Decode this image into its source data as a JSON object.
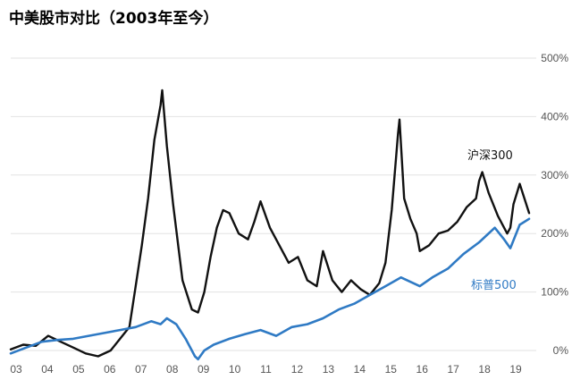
{
  "chart_data": {
    "type": "line",
    "title": "中美股市对比（2003年至今）",
    "xlabel": "",
    "ylabel": "",
    "x_ticks": [
      "03",
      "04",
      "05",
      "06",
      "07",
      "08",
      "09",
      "10",
      "11",
      "12",
      "13",
      "14",
      "15",
      "16",
      "17",
      "18",
      "19"
    ],
    "y_ticks": [
      "0%",
      "100%",
      "200%",
      "300%",
      "400%",
      "500%"
    ],
    "ylim": [
      0,
      500
    ],
    "grid": "horizontal",
    "series": [
      {
        "name": "沪深300",
        "color": "#111111",
        "x": [
          2003.0,
          2003.4,
          2003.8,
          2004.2,
          2004.6,
          2005.0,
          2005.4,
          2005.8,
          2006.2,
          2006.5,
          2006.8,
          2007.0,
          2007.2,
          2007.4,
          2007.6,
          2007.8,
          2007.85,
          2008.0,
          2008.2,
          2008.5,
          2008.8,
          2009.0,
          2009.2,
          2009.4,
          2009.6,
          2009.8,
          2010.0,
          2010.3,
          2010.6,
          2010.8,
          2011.0,
          2011.3,
          2011.6,
          2011.9,
          2012.2,
          2012.5,
          2012.8,
          2013.0,
          2013.3,
          2013.6,
          2013.9,
          2014.2,
          2014.5,
          2014.8,
          2015.0,
          2015.2,
          2015.4,
          2015.45,
          2015.6,
          2015.8,
          2016.0,
          2016.1,
          2016.4,
          2016.7,
          2017.0,
          2017.3,
          2017.6,
          2017.9,
          2018.0,
          2018.1,
          2018.3,
          2018.6,
          2018.9,
          2019.0,
          2019.1,
          2019.3,
          2019.6
        ],
        "values": [
          2,
          10,
          8,
          25,
          15,
          5,
          -5,
          -10,
          0,
          20,
          40,
          110,
          180,
          260,
          360,
          420,
          445,
          350,
          250,
          120,
          70,
          65,
          100,
          160,
          210,
          240,
          235,
          200,
          190,
          220,
          255,
          210,
          180,
          150,
          160,
          120,
          110,
          170,
          120,
          100,
          120,
          105,
          95,
          115,
          150,
          240,
          370,
          395,
          260,
          225,
          200,
          170,
          180,
          200,
          205,
          220,
          245,
          260,
          290,
          305,
          270,
          230,
          200,
          210,
          250,
          285,
          235
        ]
      },
      {
        "name": "标普500",
        "color": "#2f7ac4",
        "x": [
          2003.0,
          2003.5,
          2004.0,
          2004.5,
          2005.0,
          2005.5,
          2006.0,
          2006.5,
          2007.0,
          2007.5,
          2007.8,
          2008.0,
          2008.3,
          2008.6,
          2008.9,
          2009.0,
          2009.2,
          2009.5,
          2010.0,
          2010.5,
          2011.0,
          2011.5,
          2012.0,
          2012.5,
          2013.0,
          2013.5,
          2014.0,
          2014.5,
          2015.0,
          2015.5,
          2015.9,
          2016.1,
          2016.5,
          2017.0,
          2017.5,
          2018.0,
          2018.5,
          2018.8,
          2019.0,
          2019.3,
          2019.6
        ],
        "values": [
          -5,
          5,
          15,
          18,
          20,
          25,
          30,
          35,
          40,
          50,
          45,
          55,
          45,
          20,
          -10,
          -15,
          0,
          10,
          20,
          28,
          35,
          25,
          40,
          45,
          55,
          70,
          80,
          95,
          110,
          125,
          115,
          110,
          125,
          140,
          165,
          185,
          210,
          190,
          175,
          215,
          225
        ]
      }
    ]
  },
  "labels": {
    "csi300": "沪深300",
    "sp500": "标普500"
  }
}
